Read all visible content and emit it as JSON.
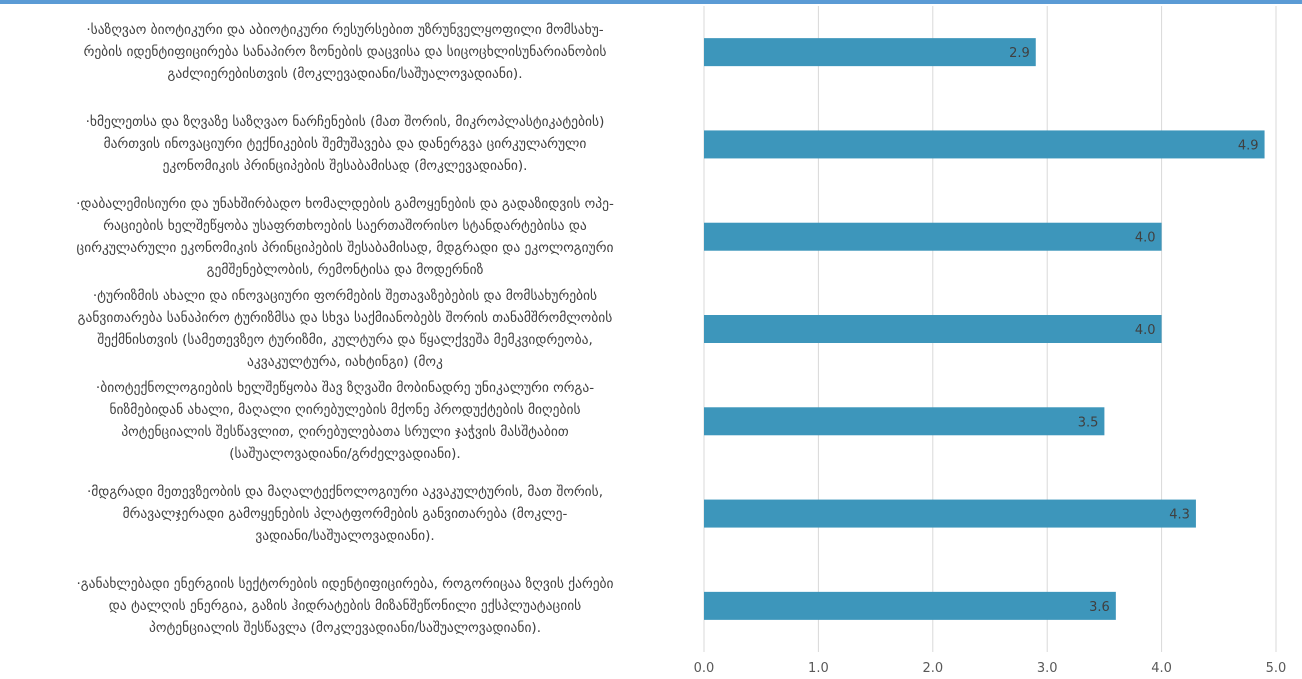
{
  "chart_data": {
    "type": "bar",
    "orientation": "horizontal",
    "categories": [
      "·საზღვაო ბიოტიკური და აბიოტიკური რესურსებით უზრუნველყოფილი მომსახურების იდენტიფიცირება სანაპირო ზონების დაცვისა და სიცოცხლისუნარიანობის გაძლიერებისთვის (მოკლევადიანი/საშუალოვადიანი).",
      "·ხმელეთსა და ზღვაზე საზღვაო ნარჩენების (მათ შორის, მიკროპლასტიკატების) მართვის ინოვაციური ტექნიკების შემუშავება და დანერგვა ცირკულარული ეკონომიკის პრინციპების შესაბამისად (მოკლევადიანი).",
      "·დაბალემისიური და უნახშირბადო ხომალდების გამოყენების და გადაზიდვის ოპერაციების ხელშეწყობა უსაფრთხოების საერთაშორისო სტანდარტებისა და ცირკულარული ეკონომიკის პრინციპების შესაბამისად, მდგრადი და ეკოლოგიური გემშენებლობის, რემონტისა და მოდერნიზ",
      "·ტურიზმის ახალი და ინოვაციური ფორმების შეთავაზებების და მომსახურების განვითარება სანაპირო ტურიზმსა და სხვა საქმიანობებს შორის თანამშრომლობის შექმნისთვის (სამეთევზეო ტურიზმი, კულტურა და წყალქვეშა მემკვიდრეობა, აკვაკულტურა, იახტინგი) (მოკ",
      "·ბიოტექნოლოგიების ხელშეწყობა შავ ზღვაში მობინადრე უნიკალური ორგანიზმებიდან ახალი, მაღალი ღირებულების მქონე პროდუქტების მიღების პოტენციალის შესწავლით, ღირებულებათა სრული ჯაჭვის მასშტაბით (საშუალოვადიანი/გრძელვადიანი).",
      "·მდგრადი მეთევზეობის და მაღალტექნოლოგიური აკვაკულტურის, მათ შორის, მრავალჯერადი გამოყენების პლატფორმების განვითარება (მოკლევადიანი/საშუალოვადიანი).",
      "·განახლებადი ენერგიის სექტორების იდენტიფიცირება, როგორიცაა ზღვის ქარები და ტალღის ენერგია, გაზის ჰიდრატების მიზანშეწონილი ექსპლუატაციის პოტენციალის შესწავლა (მოკლევადიანი/საშუალოვადიანი)."
    ],
    "category_lines": [
      [
        "·საზღვაო ბიოტიკური და აბიოტიკური რესურსებით უზრუნველყოფილი მომსახუ-",
        "რების იდენტიფიცირება სანაპირო ზონების დაცვისა და სიცოცხლისუნარიანობის",
        "გაძლიერებისთვის (მოკლევადიანი/საშუალოვადიანი)."
      ],
      [
        "·ხმელეთსა და ზღვაზე საზღვაო ნარჩენების (მათ შორის, მიკროპლასტიკატების)",
        "მართვის ინოვაციური ტექნიკების შემუშავება და დანერგვა ცირკულარული",
        "ეკონომიკის პრინციპების შესაბამისად (მოკლევადიანი)."
      ],
      [
        "·დაბალემისიური და უნახშირბადო ხომალდების გამოყენების და გადაზიდვის ოპე-",
        "რაციების ხელშეწყობა უსაფრთხოების საერთაშორისო სტანდარტებისა და",
        "ცირკულარული ეკონომიკის პრინციპების შესაბამისად, მდგრადი და ეკოლოგიური",
        "გემშენებლობის, რემონტისა და მოდერნიზ"
      ],
      [
        "·ტურიზმის ახალი და ინოვაციური ფორმების შეთავაზებების და მომსახურების",
        "განვითარება სანაპირო ტურიზმსა და სხვა საქმიანობებს შორის თანამშრომლობის",
        "შექმნისთვის (სამეთევზეო ტურიზმი, კულტურა და წყალქვეშა მემკვიდრეობა,",
        "აკვაკულტურა, იახტინგი) (მოკ"
      ],
      [
        "·ბიოტექნოლოგიების ხელშეწყობა შავ ზღვაში მობინადრე უნიკალური ორგა-",
        "ნიზმებიდან ახალი, მაღალი ღირებულების მქონე პროდუქტების მიღების",
        "პოტენციალის შესწავლით, ღირებულებათა სრული ჯაჭვის მასშტაბით",
        "(საშუალოვადიანი/გრძელვადიანი)."
      ],
      [
        "·მდგრადი მეთევზეობის და მაღალტექნოლოგიური აკვაკულტურის, მათ შორის,",
        "მრავალჯერადი გამოყენების პლატფორმების განვითარება (მოკლე-",
        "ვადიანი/საშუალოვადიანი)."
      ],
      [
        "·განახლებადი ენერგიის სექტორების იდენტიფიცირება, როგორიცაა ზღვის ქარები",
        "და ტალღის ენერგია, გაზის ჰიდრატების მიზანშეწონილი ექსპლუატაციის",
        "პოტენციალის შესწავლა (მოკლევადიანი/საშუალოვადიანი)."
      ]
    ],
    "values": [
      2.9,
      4.9,
      4.0,
      4.0,
      3.5,
      4.3,
      3.6
    ],
    "value_labels": [
      "2.9",
      "4.9",
      "4.0",
      "4.0",
      "3.5",
      "4.3",
      "3.6"
    ],
    "x_ticks": [
      "0.0",
      "1.0",
      "2.0",
      "3.0",
      "4.0",
      "5.0"
    ],
    "xlim": [
      0,
      5
    ],
    "grid": "vertical",
    "legend": "none",
    "bar_color": "#3d96bb",
    "grid_color": "#d9d9d9",
    "accent_line_color": "#5b9bd5"
  }
}
